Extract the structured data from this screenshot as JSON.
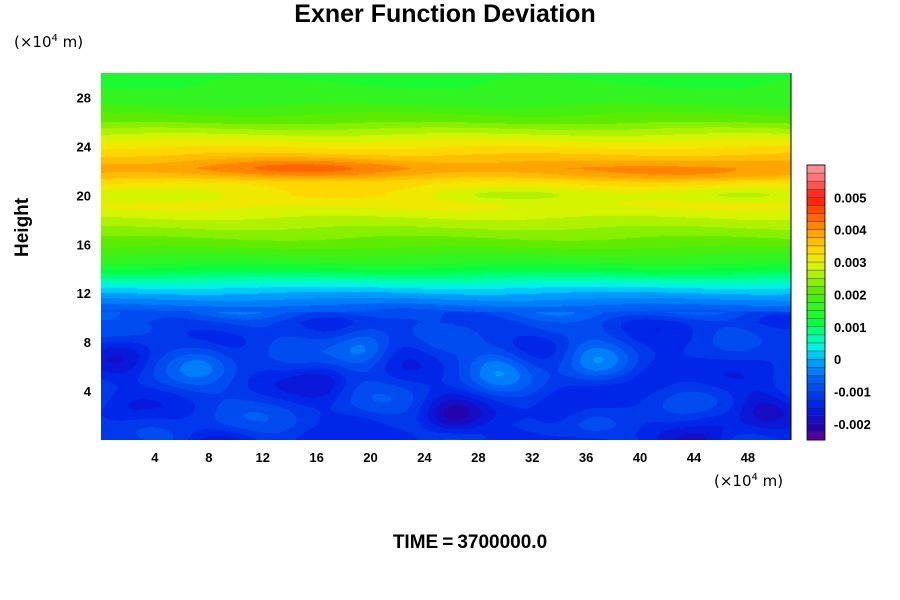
{
  "chart_data": {
    "type": "heatmap",
    "title": "Exner Function Deviation",
    "ylabel": "Height",
    "xlabel": "",
    "x_unit": {
      "prefix": "(×10",
      "exp": "4",
      "suffix": " m)"
    },
    "y_unit": {
      "prefix": "(×10",
      "exp": "4",
      "suffix": " m)"
    },
    "xlim": [
      0,
      51.2
    ],
    "ylim": [
      0,
      30
    ],
    "x_ticks": [
      4,
      8,
      12,
      16,
      20,
      24,
      28,
      32,
      36,
      40,
      44,
      48
    ],
    "y_ticks": [
      4,
      8,
      12,
      16,
      20,
      24,
      28
    ],
    "colorbar": {
      "min": -0.0025,
      "max": 0.006,
      "levels": 34,
      "ticks": [
        {
          "value": 0.005,
          "label": "0.005"
        },
        {
          "value": 0.004,
          "label": "0.004"
        },
        {
          "value": 0.003,
          "label": "0.003"
        },
        {
          "value": 0.002,
          "label": "0.002"
        },
        {
          "value": 0.001,
          "label": "0.001"
        },
        {
          "value": 0,
          "label": "0"
        },
        {
          "value": -0.001,
          "label": "-0.001"
        },
        {
          "value": -0.002,
          "label": "-0.002"
        }
      ]
    },
    "profile": [
      {
        "z": 0,
        "v": -0.0011
      },
      {
        "z": 9.6,
        "v": -0.0011
      },
      {
        "z": 10.5,
        "v": -0.00075
      },
      {
        "z": 11.4,
        "v": -0.0003
      },
      {
        "z": 12.2,
        "v": 0.0001
      },
      {
        "z": 13.0,
        "v": 0.0006
      },
      {
        "z": 14.5,
        "v": 0.0015
      },
      {
        "z": 16.0,
        "v": 0.0021
      },
      {
        "z": 18.0,
        "v": 0.0027
      },
      {
        "z": 19.2,
        "v": 0.0031
      },
      {
        "z": 20.0,
        "v": 0.0034
      },
      {
        "z": 21.0,
        "v": 0.0033
      },
      {
        "z": 22.2,
        "v": 0.0039
      },
      {
        "z": 23.3,
        "v": 0.0035
      },
      {
        "z": 24.5,
        "v": 0.003
      },
      {
        "z": 26.0,
        "v": 0.0022
      },
      {
        "z": 27.5,
        "v": 0.0017
      },
      {
        "z": 30.0,
        "v": 0.0014
      }
    ],
    "anomalies": [
      {
        "x": 1.8,
        "z": 6.8,
        "v": -0.0016
      },
      {
        "x": 1.3,
        "z": 1.8,
        "v": -0.0014
      },
      {
        "x": 7.5,
        "z": 6.5,
        "v": -0.0006
      },
      {
        "x": 16.5,
        "z": 4.8,
        "v": -0.0016
      },
      {
        "x": 19.5,
        "z": 7.5,
        "v": -0.0004
      },
      {
        "x": 22.5,
        "z": 8.0,
        "v": -0.0014
      },
      {
        "x": 26.0,
        "z": 2.0,
        "v": -0.0019
      },
      {
        "x": 29.5,
        "z": 6.0,
        "v": -0.0005
      },
      {
        "x": 34.0,
        "z": 2.0,
        "v": -0.0016
      },
      {
        "x": 36.5,
        "z": 6.5,
        "v": -0.0004
      },
      {
        "x": 41.0,
        "z": 5.8,
        "v": -0.0016
      },
      {
        "x": 45.5,
        "z": 1.2,
        "v": -0.0015
      },
      {
        "x": 49.0,
        "z": 2.5,
        "v": -0.0017
      },
      {
        "x": 49.5,
        "z": 7.5,
        "v": -0.0014
      },
      {
        "x": 15.0,
        "z": 22.2,
        "v": 0.0043
      },
      {
        "x": 44.0,
        "z": 22.0,
        "v": 0.0041
      },
      {
        "x": 2.5,
        "z": 20.0,
        "v": 0.0027
      },
      {
        "x": 30.0,
        "z": 20.0,
        "v": 0.0027
      },
      {
        "x": 47.0,
        "z": 20.0,
        "v": 0.0027
      }
    ]
  },
  "time_label": "TIME",
  "time_eq": "=",
  "time_value": "3700000.0"
}
